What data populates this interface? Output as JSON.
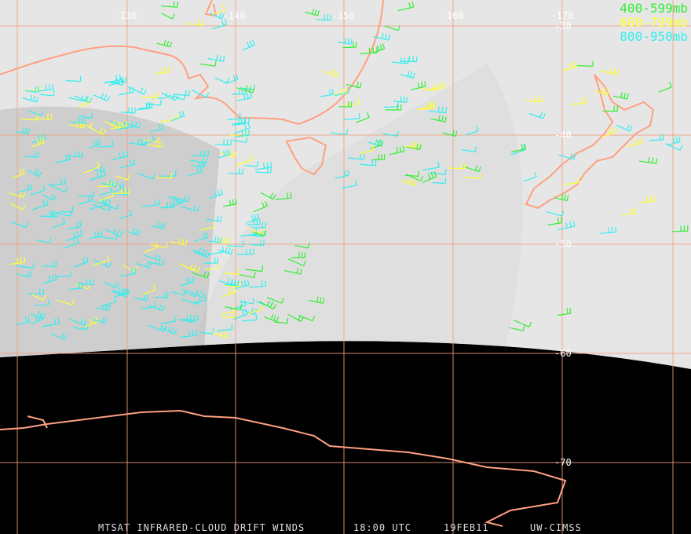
{
  "map": {
    "longitude_labels": [
      "-130",
      "-140",
      "-150",
      "-160",
      "-170"
    ],
    "latitude_labels": [
      "-30",
      "-40",
      "-50",
      "-60",
      "-70"
    ],
    "legend": [
      {
        "label": "400-599mb",
        "color": "#33ee33"
      },
      {
        "label": "600-799mb",
        "color": "#ffff33"
      },
      {
        "label": "800-950mb",
        "color": "#33eeee"
      }
    ],
    "footer": [
      "MTSAT INFRARED-CLOUD DRIFT WINDS",
      "18:00 UTC",
      "19FEB11",
      "UW-CIMSS"
    ]
  }
}
